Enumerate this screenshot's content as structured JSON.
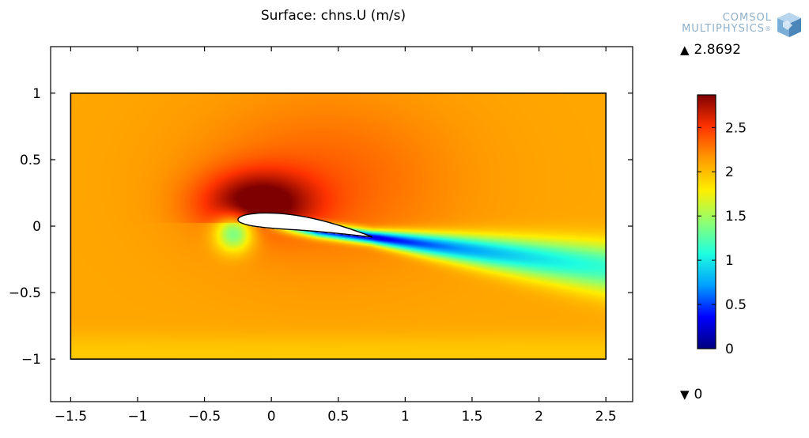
{
  "title": "Surface: chns.U (m/s)",
  "logo": {
    "line1": "COMSOL",
    "line2": "MULTIPHYSICS",
    "reg": "®"
  },
  "colorbar": {
    "max_label": "2.8692",
    "min_label": "0",
    "max": 2.8692,
    "min": 0,
    "ticks": [
      "0",
      "0.5",
      "1",
      "1.5",
      "2",
      "2.5"
    ],
    "tick_values": [
      0,
      0.5,
      1,
      1.5,
      2,
      2.5
    ],
    "colormap": [
      "#00007f",
      "#0000ff",
      "#00a0ff",
      "#1fffe0",
      "#90ff70",
      "#ffee00",
      "#ff9a00",
      "#ff3300",
      "#7f0000"
    ]
  },
  "chart_data": {
    "type": "heatmap",
    "title": "Surface: chns.U (m/s)",
    "xlabel": "",
    "ylabel": "",
    "xlim": [
      -1.65,
      2.7
    ],
    "ylim": [
      -1.32,
      1.35
    ],
    "x_ticks": [
      "−1.5",
      "−1",
      "−0.5",
      "0",
      "0.5",
      "1",
      "1.5",
      "2",
      "2.5"
    ],
    "x_tick_values": [
      -1.5,
      -1,
      -0.5,
      0,
      0.5,
      1,
      1.5,
      2,
      2.5
    ],
    "y_ticks": [
      "1",
      "0.5",
      "0",
      "−0.5",
      "−1"
    ],
    "y_tick_values": [
      1,
      0.5,
      0,
      -0.5,
      -1
    ],
    "domain": {
      "x": [
        -1.5,
        2.5
      ],
      "y": [
        -1,
        1
      ]
    },
    "airfoil": {
      "leading_edge": [
        -0.25,
        0.05
      ],
      "trailing_edge": [
        0.75,
        -0.08
      ]
    },
    "field": {
      "variable": "chns.U",
      "unit": "m/s",
      "free_stream": 2.1,
      "suction_peak": 2.87,
      "stagnation_min": 1.2,
      "wake_min": 0.15,
      "wake_far": 1.5
    },
    "grid": false
  }
}
